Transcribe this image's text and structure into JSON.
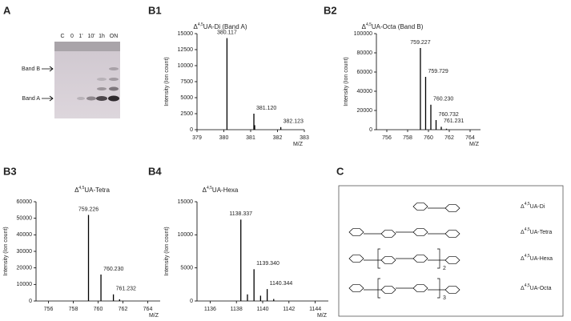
{
  "panels": {
    "a": "A",
    "c": "C"
  },
  "gel": {
    "lanes": [
      "C",
      "0",
      "1'",
      "10'",
      "1h",
      "ON"
    ],
    "bands": [
      "Band B",
      "Band A"
    ]
  },
  "chart_data": [
    {
      "type": "spectrum",
      "panel": "B1",
      "title": [
        "Δ",
        "4,5",
        "UA-Di (Band A)"
      ],
      "x_label": "M/Z",
      "y_label": "Intensity (Ion count)",
      "x": [
        380.117,
        381.12,
        381.15,
        382.123
      ],
      "values": [
        14300,
        2500,
        700,
        400
      ],
      "x_labels": [
        "380.117",
        "381.120",
        null,
        "382.123"
      ],
      "color": "#000000",
      "xlim": [
        379,
        383
      ],
      "xticks": [
        379,
        380,
        381,
        382,
        383
      ],
      "ylim": [
        0,
        15000
      ],
      "yticks": [
        0,
        2500,
        5000,
        7500,
        10000,
        12500,
        15000
      ]
    },
    {
      "type": "spectrum",
      "panel": "B2",
      "title": [
        "Δ",
        "4,5",
        "UA-Octa (Band B)"
      ],
      "x_label": "M/Z",
      "y_label": "Intensity (Ion count)",
      "x": [
        759.227,
        759.729,
        760.23,
        760.732,
        761.231,
        761.73
      ],
      "values": [
        85000,
        55000,
        26000,
        10000,
        3000,
        1000
      ],
      "x_labels": [
        "759.227",
        "759.729",
        "760.230",
        "760.732",
        "761.231",
        null
      ],
      "color": "#000000",
      "xlim": [
        755,
        765
      ],
      "xticks": [
        756,
        758,
        760,
        762,
        764
      ],
      "ylim": [
        0,
        100000
      ],
      "yticks": [
        0,
        20000,
        40000,
        60000,
        80000,
        100000
      ]
    },
    {
      "type": "spectrum",
      "panel": "B3",
      "title": [
        "Δ",
        "4,5",
        "UA-Tetra"
      ],
      "x_label": "M/Z",
      "y_label": "Intensity (Ion count)",
      "x": [
        759.226,
        760.23,
        761.232,
        761.73
      ],
      "values": [
        52000,
        16000,
        4000,
        1000
      ],
      "x_labels": [
        "759.226",
        "760.230",
        "761.232",
        null
      ],
      "color": "#000000",
      "xlim": [
        755,
        765
      ],
      "xticks": [
        756,
        758,
        760,
        762,
        764
      ],
      "ylim": [
        0,
        60000
      ],
      "yticks": [
        0,
        10000,
        20000,
        30000,
        40000,
        50000,
        60000
      ]
    },
    {
      "type": "spectrum",
      "panel": "B4",
      "title": [
        "Δ",
        "4,5",
        "UA-Hexa"
      ],
      "x_label": "M/Z",
      "y_label": "Intensity (Ion count)",
      "x": [
        1138.337,
        1138.84,
        1139.34,
        1139.84,
        1140.344,
        1140.84
      ],
      "values": [
        12300,
        1000,
        4800,
        800,
        1800,
        300
      ],
      "x_labels": [
        "1138.337",
        null,
        "1139.340",
        null,
        "1140.344",
        null
      ],
      "color": "#000000",
      "xlim": [
        1135,
        1145
      ],
      "xticks": [
        1136,
        1138,
        1140,
        1142,
        1144
      ],
      "ylim": [
        0,
        15000
      ],
      "yticks": [
        0,
        5000,
        10000,
        15000
      ]
    }
  ],
  "structures": [
    {
      "label": [
        "Δ",
        "4,5",
        "UA-Di"
      ]
    },
    {
      "label": [
        "Δ",
        "4,5",
        "UA-Tetra"
      ]
    },
    {
      "label": [
        "Δ",
        "4,5",
        "UA-Hexa"
      ],
      "repeat": "2"
    },
    {
      "label": [
        "Δ",
        "4,5",
        "UA-Octa"
      ],
      "repeat": "3"
    }
  ]
}
